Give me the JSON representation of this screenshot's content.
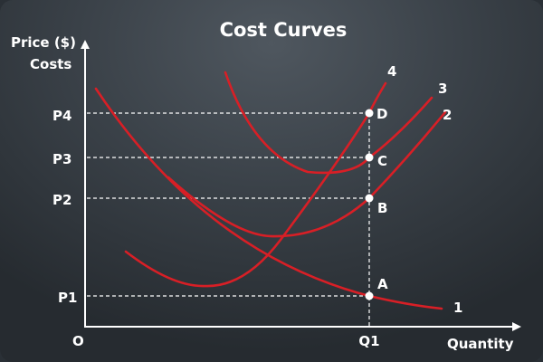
{
  "title": "Cost Curves",
  "y_axis": {
    "line1": "Price ($)",
    "line2": "Costs"
  },
  "x_axis": {
    "label": "Quantity",
    "origin": "O",
    "q1": "Q1"
  },
  "price_levels": [
    "P1",
    "P2",
    "P3",
    "P4"
  ],
  "points": [
    "A",
    "B",
    "C",
    "D"
  ],
  "curves": [
    "1",
    "2",
    "3",
    "4"
  ],
  "colors": {
    "curve": "#d81f26",
    "text": "#ffffff"
  }
}
